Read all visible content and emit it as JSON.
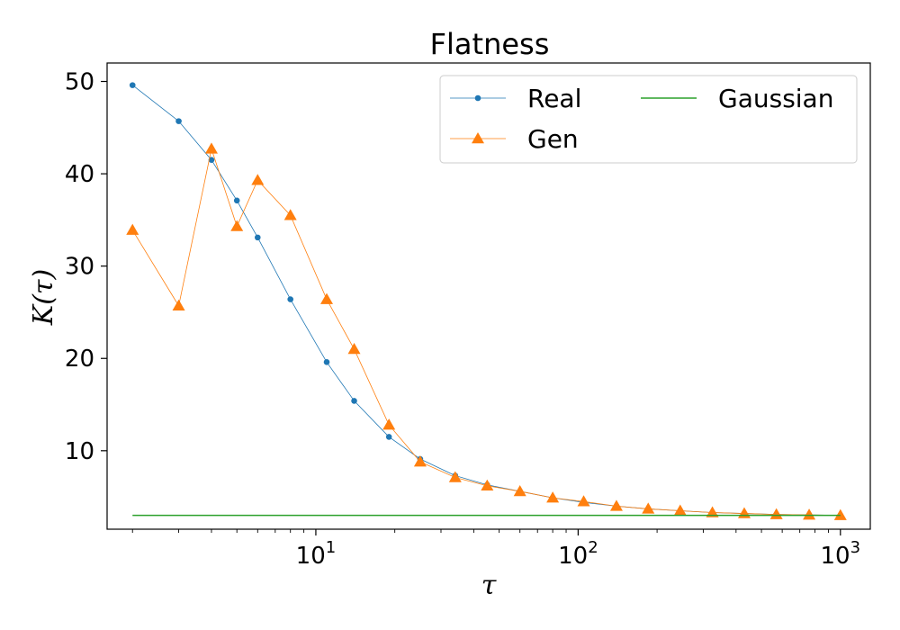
{
  "chart_data": {
    "type": "line",
    "title": "Flatness",
    "xlabel": "τ",
    "ylabel": "K(τ)",
    "xscale": "log",
    "xlim": [
      1.6,
      1300
    ],
    "ylim": [
      1.5,
      52
    ],
    "yticks": [
      10,
      20,
      30,
      40,
      50
    ],
    "xticks": [
      {
        "value": 10,
        "base": "10",
        "exp": "1"
      },
      {
        "value": 100,
        "base": "10",
        "exp": "2"
      },
      {
        "value": 1000,
        "base": "10",
        "exp": "3"
      }
    ],
    "legend_position": "top-right",
    "series": [
      {
        "name": "Real",
        "color": "#1f77b4",
        "marker": "circle",
        "x": [
          2,
          3,
          4,
          5,
          6,
          8,
          11,
          14,
          19,
          25,
          34,
          45,
          60,
          80,
          105,
          140,
          185,
          245,
          325,
          430,
          570,
          760,
          1000
        ],
        "y": [
          49.6,
          45.7,
          41.5,
          37.1,
          33.1,
          26.4,
          19.6,
          15.4,
          11.5,
          9.1,
          7.3,
          6.3,
          5.6,
          4.9,
          4.4,
          4.0,
          3.7,
          3.5,
          3.3,
          3.2,
          3.1,
          3.05,
          3.0
        ]
      },
      {
        "name": "Gen",
        "color": "#ff7f0e",
        "marker": "triangle",
        "x": [
          2,
          3,
          4,
          5,
          6,
          8,
          11,
          14,
          19,
          25,
          34,
          45,
          60,
          80,
          105,
          140,
          185,
          245,
          325,
          430,
          570,
          760,
          1000
        ],
        "y": [
          33.9,
          25.7,
          42.7,
          34.3,
          39.3,
          35.5,
          26.4,
          21.0,
          12.8,
          8.8,
          7.1,
          6.2,
          5.6,
          4.9,
          4.5,
          4.0,
          3.7,
          3.5,
          3.3,
          3.2,
          3.1,
          3.05,
          3.0
        ]
      },
      {
        "name": "Gaussian",
        "color": "#2ca02c",
        "marker": "none",
        "x": [
          2,
          1000
        ],
        "y": [
          3.0,
          3.0
        ]
      }
    ]
  }
}
